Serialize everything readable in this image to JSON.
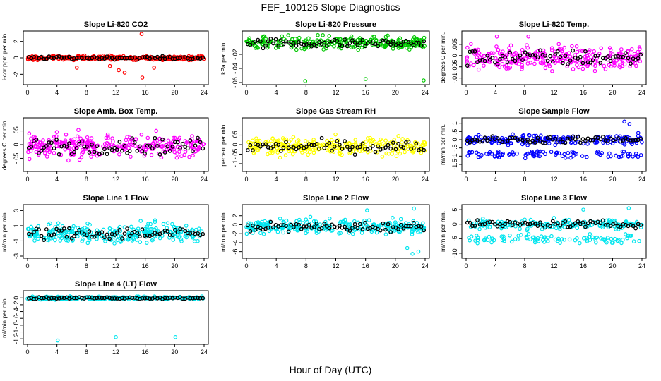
{
  "figure": {
    "title": "FEF_100125  Slope Diagnostics",
    "xlabel": "Hour of Day (UTC)"
  },
  "chart_data": [
    {
      "type": "scatter",
      "title": "Slope Li-820 CO2",
      "ylabel": "Li-cor ppm per min.",
      "xlim": [
        0,
        24
      ],
      "xticks": [
        0,
        4,
        8,
        12,
        16,
        20,
        24
      ],
      "ylim": [
        -3,
        3
      ],
      "yticks": [
        -2,
        0,
        2
      ],
      "color": "#ff0000",
      "mean_color": "#000000",
      "base": 0,
      "spread": 0.25,
      "outliers": [
        [
          15.5,
          2.9
        ],
        [
          15.6,
          -2.4
        ],
        [
          12.4,
          -1.5
        ],
        [
          13.2,
          -1.8
        ],
        [
          6.7,
          -1.2
        ],
        [
          17.2,
          -1.2
        ],
        [
          11.2,
          -1.0
        ]
      ],
      "band2": null
    },
    {
      "type": "scatter",
      "title": "Slope Li-820 Pressure",
      "ylabel": "kPa per min.",
      "xlim": [
        0,
        24
      ],
      "xticks": [
        0,
        4,
        8,
        12,
        16,
        20,
        24
      ],
      "ylim": [
        -0.06,
        0.01
      ],
      "yticks": [
        -0.06,
        -0.04,
        -0.02
      ],
      "color": "#00c800",
      "mean_color": "#000000",
      "base": -0.004,
      "spread": 0.009,
      "outliers": [
        [
          7.9,
          -0.058
        ],
        [
          16.0,
          -0.055
        ],
        [
          23.8,
          -0.057
        ]
      ],
      "band2": null
    },
    {
      "type": "scatter",
      "title": "Slope Li-820 Temp.",
      "ylabel": "degrees C per min.",
      "xlim": [
        0,
        24
      ],
      "xticks": [
        0,
        4,
        8,
        12,
        16,
        20,
        24
      ],
      "ylim": [
        -0.012,
        0.01
      ],
      "yticks": [
        -0.01,
        -0.005,
        0,
        0.005
      ],
      "color": "#ff00ff",
      "mean_color": "#000000",
      "base": -0.001,
      "spread": 0.005,
      "outliers": [
        [
          4.2,
          0.0085
        ],
        [
          8.5,
          0.0085
        ]
      ],
      "band2": null
    },
    {
      "type": "scatter",
      "title": "Slope Amb. Box Temp.",
      "ylabel": "degrees C per min.",
      "xlim": [
        0,
        24
      ],
      "xticks": [
        0,
        4,
        8,
        12,
        16,
        20,
        24
      ],
      "ylim": [
        -0.09,
        0.09
      ],
      "yticks": [
        -0.05,
        0,
        0.05
      ],
      "color": "#ff00ff",
      "mean_color": "#000000",
      "base": -0.005,
      "spread": 0.04,
      "outliers": [],
      "band2": null
    },
    {
      "type": "scatter",
      "title": "Slope Gas Stream RH",
      "ylabel": "percent per min.",
      "xlim": [
        0,
        24
      ],
      "xticks": [
        0,
        4,
        8,
        12,
        16,
        20,
        24
      ],
      "ylim": [
        -0.13,
        0.13
      ],
      "yticks": [
        -0.1,
        -0.05,
        0,
        0.05
      ],
      "color": "#ffff00",
      "mean_color": "#000000",
      "base": -0.01,
      "spread": 0.045,
      "outliers": [],
      "band2": null
    },
    {
      "type": "scatter",
      "title": "Slope Sample Flow",
      "ylabel": "ml/min per min.",
      "xlim": [
        0,
        24
      ],
      "xticks": [
        0,
        4,
        8,
        12,
        16,
        20,
        24
      ],
      "ylim": [
        -1.8,
        1.2
      ],
      "yticks": [
        -1.5,
        -1.0,
        -0.5,
        0,
        0.5,
        1.0
      ],
      "color": "#0000ff",
      "mean_color": "#000000",
      "base": 0,
      "spread": 0.3,
      "outliers": [
        [
          21.6,
          1.1
        ],
        [
          22.3,
          0.95
        ]
      ],
      "band2": {
        "base": -0.9,
        "spread": 0.25
      }
    },
    {
      "type": "scatter",
      "title": "Slope Line 1 Flow",
      "ylabel": "ml/min per min.",
      "xlim": [
        0,
        24
      ],
      "xticks": [
        0,
        4,
        8,
        12,
        16,
        20,
        24
      ],
      "ylim": [
        -3,
        3.5
      ],
      "yticks": [
        -3,
        -1,
        1,
        3
      ],
      "color": "#00e5ee",
      "mean_color": "#000000",
      "base": 0,
      "spread": 1.2,
      "outliers": [],
      "band2": null
    },
    {
      "type": "scatter",
      "title": "Slope Line 2 Flow",
      "ylabel": "ml/min per min.",
      "xlim": [
        0,
        24
      ],
      "xticks": [
        0,
        4,
        8,
        12,
        16,
        20,
        24
      ],
      "ylim": [
        -7,
        4
      ],
      "yticks": [
        -6,
        -4,
        -2,
        0,
        2
      ],
      "color": "#00e5ee",
      "mean_color": "#000000",
      "base": -0.5,
      "spread": 1.5,
      "outliers": [
        [
          22.3,
          -6.5
        ],
        [
          23.1,
          -6.0
        ],
        [
          21.6,
          -5.2
        ],
        [
          16.2,
          3.2
        ],
        [
          22.5,
          3.6
        ]
      ],
      "band2": null
    },
    {
      "type": "scatter",
      "title": "Slope Line 3 Flow",
      "ylabel": "ml/min per min.",
      "xlim": [
        0,
        24
      ],
      "xticks": [
        0,
        4,
        8,
        12,
        16,
        20,
        24
      ],
      "ylim": [
        -11,
        6
      ],
      "yticks": [
        -10,
        -5,
        0,
        5
      ],
      "color": "#00e5ee",
      "mean_color": "#000000",
      "base": 0,
      "spread": 1.6,
      "outliers": [
        [
          22.2,
          5.5
        ],
        [
          16.0,
          5.0
        ]
      ],
      "band2": {
        "base": -5,
        "spread": 1.8
      }
    },
    {
      "type": "scatter",
      "title": "Slope Line 4 (LT) Flow",
      "ylabel": "ml/min per min.",
      "xlim": [
        0,
        24
      ],
      "xticks": [
        0,
        4,
        8,
        12,
        16,
        20,
        24
      ],
      "ylim": [
        -1.3,
        0.15
      ],
      "yticks": [
        -1.2,
        -1.0,
        -0.8,
        -0.6,
        -0.4,
        -0.2,
        0.0
      ],
      "color": "#00e5ee",
      "mean_color": "#000000",
      "base": 0,
      "spread": 0.04,
      "outliers": [
        [
          4.1,
          -1.25
        ],
        [
          12.0,
          -1.15
        ],
        [
          20.1,
          -1.15
        ]
      ],
      "band2": null
    }
  ]
}
